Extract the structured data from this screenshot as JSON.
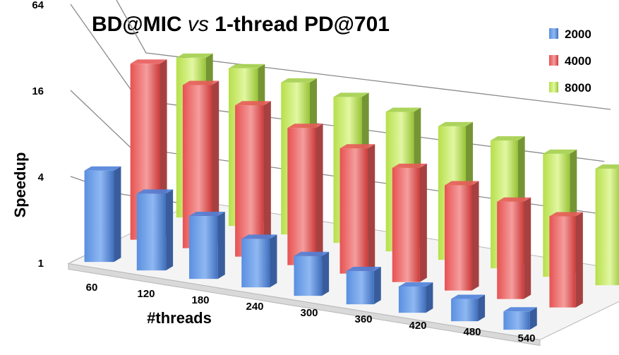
{
  "chart_data": {
    "type": "bar",
    "title_main": "BD@MIC ",
    "title_vs": "vs",
    "title_rest": " 1-thread PD@701",
    "xlabel": "#threads",
    "ylabel": "Speedup",
    "yscale": "log2",
    "ylim": [
      1,
      256
    ],
    "yticks": [
      "1",
      "4",
      "16",
      "64",
      "256"
    ],
    "categories": [
      "60",
      "120",
      "180",
      "240",
      "300",
      "360",
      "420",
      "480",
      "540"
    ],
    "legend_position": "top-right",
    "series": [
      {
        "name": "2000",
        "color": "#4f81d9",
        "values": [
          4.5,
          3.6,
          2.9,
          2.3,
          2.0,
          1.8,
          1.6,
          1.5,
          1.4
        ]
      },
      {
        "name": "4000",
        "color": "#e85a5a",
        "values": [
          40,
          32,
          26,
          20,
          16,
          13,
          11,
          9.5,
          8.5
        ]
      },
      {
        "name": "8000",
        "color": "#a3cf4a",
        "values": [
          100,
          100,
          90,
          80,
          70,
          62,
          55,
          50,
          43
        ]
      }
    ]
  }
}
